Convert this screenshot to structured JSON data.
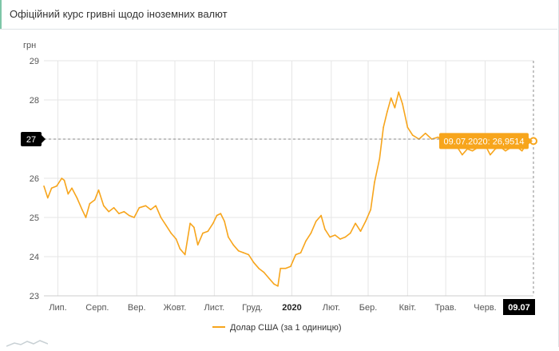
{
  "header": {
    "title": "Офіційний курс гривні щодо іноземних валют"
  },
  "colors": {
    "series": "#f7a51c",
    "highlight_bg": "#f7a51c",
    "axis_text": "#555555",
    "grid": "#e6e6e6",
    "marker_bg": "#000000"
  },
  "chart_data": {
    "type": "line",
    "title": "",
    "ylabel": "грн",
    "ylim": [
      23,
      29
    ],
    "yticks": [
      23,
      24,
      25,
      26,
      27,
      28,
      29
    ],
    "x_tick_labels": [
      "Лип.",
      "Серп.",
      "Вер.",
      "Жовт.",
      "Лист.",
      "Груд.",
      "2020",
      "Лют.",
      "Бер.",
      "Квіт.",
      "Трав.",
      "Черв."
    ],
    "x_tick_dates": [
      "2019-07-01",
      "2019-08-01",
      "2019-09-01",
      "2019-10-01",
      "2019-11-01",
      "2019-12-01",
      "2020-01-01",
      "2020-02-01",
      "2020-03-01",
      "2020-04-01",
      "2020-05-01",
      "2020-06-01"
    ],
    "x_range": [
      "2019-06-20",
      "2020-07-09"
    ],
    "legend": "Долар США (за 1 одиницю)",
    "crosshair_y": "27",
    "crosshair_x": "09.07",
    "tooltip": "09.07.2020: 26,9514",
    "series": [
      {
        "name": "Долар США (за 1 одиницю)",
        "points": [
          [
            "2019-06-20",
            25.8
          ],
          [
            "2019-06-23",
            25.5
          ],
          [
            "2019-06-26",
            25.75
          ],
          [
            "2019-06-30",
            25.8
          ],
          [
            "2019-07-04",
            26.0
          ],
          [
            "2019-07-06",
            25.95
          ],
          [
            "2019-07-09",
            25.6
          ],
          [
            "2019-07-12",
            25.75
          ],
          [
            "2019-07-16",
            25.5
          ],
          [
            "2019-07-20",
            25.2
          ],
          [
            "2019-07-23",
            25.0
          ],
          [
            "2019-07-26",
            25.35
          ],
          [
            "2019-07-30",
            25.45
          ],
          [
            "2019-08-02",
            25.7
          ],
          [
            "2019-08-06",
            25.3
          ],
          [
            "2019-08-10",
            25.15
          ],
          [
            "2019-08-14",
            25.25
          ],
          [
            "2019-08-18",
            25.1
          ],
          [
            "2019-08-22",
            25.15
          ],
          [
            "2019-08-26",
            25.05
          ],
          [
            "2019-08-30",
            25.0
          ],
          [
            "2019-09-03",
            25.25
          ],
          [
            "2019-09-08",
            25.3
          ],
          [
            "2019-09-12",
            25.2
          ],
          [
            "2019-09-16",
            25.3
          ],
          [
            "2019-09-20",
            25.0
          ],
          [
            "2019-09-24",
            24.8
          ],
          [
            "2019-09-28",
            24.6
          ],
          [
            "2019-10-02",
            24.45
          ],
          [
            "2019-10-05",
            24.2
          ],
          [
            "2019-10-09",
            24.05
          ],
          [
            "2019-10-13",
            24.85
          ],
          [
            "2019-10-16",
            24.75
          ],
          [
            "2019-10-19",
            24.3
          ],
          [
            "2019-10-23",
            24.6
          ],
          [
            "2019-10-27",
            24.65
          ],
          [
            "2019-10-31",
            24.85
          ],
          [
            "2019-11-03",
            25.05
          ],
          [
            "2019-11-06",
            25.1
          ],
          [
            "2019-11-09",
            24.9
          ],
          [
            "2019-11-12",
            24.5
          ],
          [
            "2019-11-16",
            24.3
          ],
          [
            "2019-11-20",
            24.15
          ],
          [
            "2019-11-24",
            24.1
          ],
          [
            "2019-11-28",
            24.05
          ],
          [
            "2019-12-02",
            23.85
          ],
          [
            "2019-12-06",
            23.7
          ],
          [
            "2019-12-10",
            23.6
          ],
          [
            "2019-12-14",
            23.45
          ],
          [
            "2019-12-18",
            23.3
          ],
          [
            "2019-12-21",
            23.25
          ],
          [
            "2019-12-23",
            23.7
          ],
          [
            "2019-12-27",
            23.7
          ],
          [
            "2019-12-31",
            23.75
          ],
          [
            "2020-01-04",
            24.05
          ],
          [
            "2020-01-08",
            24.1
          ],
          [
            "2020-01-12",
            24.4
          ],
          [
            "2020-01-16",
            24.6
          ],
          [
            "2020-01-20",
            24.9
          ],
          [
            "2020-01-24",
            25.05
          ],
          [
            "2020-01-27",
            24.7
          ],
          [
            "2020-01-31",
            24.5
          ],
          [
            "2020-02-04",
            24.55
          ],
          [
            "2020-02-08",
            24.45
          ],
          [
            "2020-02-12",
            24.5
          ],
          [
            "2020-02-16",
            24.6
          ],
          [
            "2020-02-20",
            24.85
          ],
          [
            "2020-02-24",
            24.65
          ],
          [
            "2020-02-28",
            24.9
          ],
          [
            "2020-03-03",
            25.2
          ],
          [
            "2020-03-06",
            25.9
          ],
          [
            "2020-03-10",
            26.5
          ],
          [
            "2020-03-13",
            27.3
          ],
          [
            "2020-03-16",
            27.7
          ],
          [
            "2020-03-19",
            28.05
          ],
          [
            "2020-03-22",
            27.8
          ],
          [
            "2020-03-25",
            28.2
          ],
          [
            "2020-03-28",
            27.9
          ],
          [
            "2020-04-01",
            27.3
          ],
          [
            "2020-04-05",
            27.1
          ],
          [
            "2020-04-10",
            27.0
          ],
          [
            "2020-04-15",
            27.15
          ],
          [
            "2020-04-20",
            27.0
          ],
          [
            "2020-04-25",
            27.05
          ],
          [
            "2020-04-30",
            26.9
          ],
          [
            "2020-05-05",
            26.8
          ],
          [
            "2020-05-10",
            26.8
          ],
          [
            "2020-05-14",
            26.6
          ],
          [
            "2020-05-18",
            26.75
          ],
          [
            "2020-05-22",
            26.7
          ],
          [
            "2020-05-27",
            26.8
          ],
          [
            "2020-06-01",
            26.85
          ],
          [
            "2020-06-05",
            26.6
          ],
          [
            "2020-06-09",
            26.75
          ],
          [
            "2020-06-13",
            26.8
          ],
          [
            "2020-06-17",
            26.7
          ],
          [
            "2020-06-22",
            26.8
          ],
          [
            "2020-06-26",
            26.8
          ],
          [
            "2020-06-30",
            26.7
          ],
          [
            "2020-07-04",
            26.9
          ],
          [
            "2020-07-09",
            26.9514
          ]
        ]
      }
    ]
  }
}
